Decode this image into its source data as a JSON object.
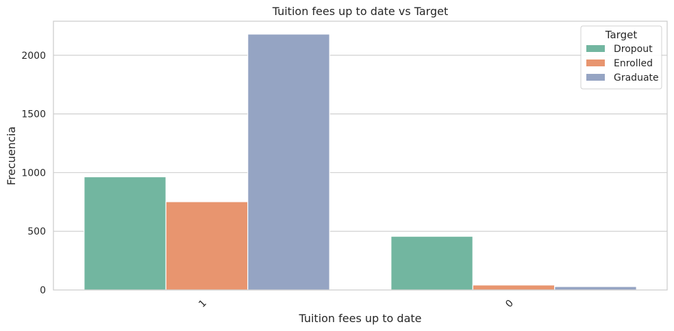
{
  "chart_data": {
    "type": "bar",
    "title": "Tuition fees up to date vs Target",
    "xlabel": "Tuition fees up to date",
    "ylabel": "Frecuencia",
    "categories": [
      "1",
      "0"
    ],
    "series": [
      {
        "name": "Dropout",
        "values": [
          964,
          457
        ],
        "color": "#72b6a0"
      },
      {
        "name": "Enrolled",
        "values": [
          752,
          42
        ],
        "color": "#e8956f"
      },
      {
        "name": "Graduate",
        "values": [
          2180,
          29
        ],
        "color": "#95a4c3"
      }
    ],
    "ylim": [
      0,
      2290
    ],
    "yticks": [
      0,
      500,
      1000,
      1500,
      2000
    ],
    "legend": {
      "title": "Target",
      "position": "top-right"
    },
    "grid": "horizontal",
    "xtick_rotation": 45
  }
}
